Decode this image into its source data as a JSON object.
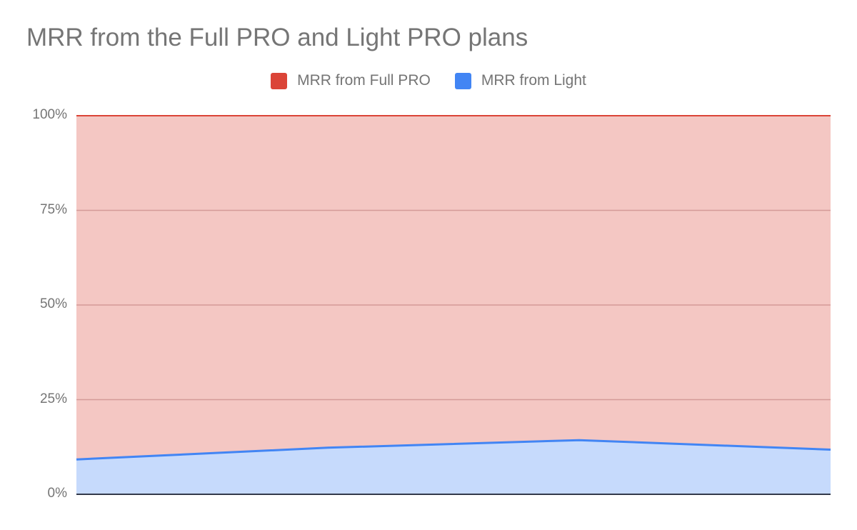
{
  "chart_data": {
    "type": "area",
    "stacked": true,
    "percent": true,
    "title": "MRR from the Full PRO and Light PRO plans",
    "xlabel": "",
    "ylabel": "",
    "ylim": [
      0,
      100
    ],
    "x": [
      1,
      2,
      3,
      4
    ],
    "yticks": [
      "0%",
      "25%",
      "50%",
      "75%",
      "100%"
    ],
    "grid": true,
    "legend_position": "top",
    "series": [
      {
        "name": "MRR from Full PRO",
        "color": "#db4437",
        "values": [
          90.8,
          87.7,
          85.7,
          88.2
        ]
      },
      {
        "name": "MRR from Light",
        "color": "#4285f4",
        "values": [
          9.2,
          12.3,
          14.3,
          11.8
        ]
      }
    ]
  },
  "title": "MRR from the Full PRO and Light PRO plans",
  "legend": [
    {
      "label": "MRR from Full PRO",
      "color": "#db4437"
    },
    {
      "label": "MRR from Light",
      "color": "#4285f4"
    }
  ],
  "yaxis": {
    "ticks": [
      "100%",
      "75%",
      "50%",
      "25%",
      "0%"
    ]
  }
}
